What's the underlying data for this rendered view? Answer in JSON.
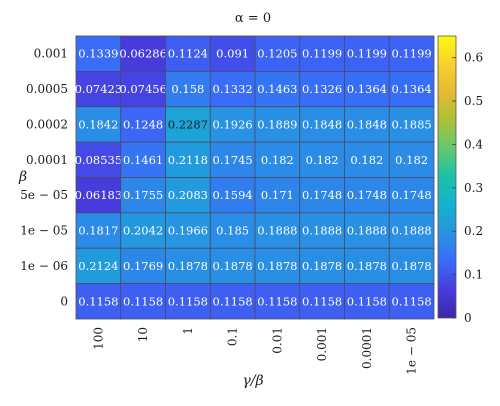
{
  "chart_data": {
    "type": "heatmap",
    "title": "α = 0",
    "xlabel": "γ/β",
    "ylabel": "β",
    "x_categories": [
      "100",
      "10",
      "1",
      "0.1",
      "0.01",
      "0.001",
      "0.0001",
      "1e − 05"
    ],
    "y_categories": [
      "0.001",
      "0.0005",
      "0.0002",
      "0.0001",
      "5e − 05",
      "1e − 05",
      "1e − 06",
      "0"
    ],
    "values": [
      [
        0.1339,
        0.06286,
        0.1124,
        0.091,
        0.1205,
        0.1199,
        0.1199,
        0.1199
      ],
      [
        0.07423,
        0.07456,
        0.158,
        0.1332,
        0.1463,
        0.1326,
        0.1364,
        0.1364
      ],
      [
        0.1842,
        0.1248,
        0.2287,
        0.1926,
        0.1889,
        0.1848,
        0.1848,
        0.1885
      ],
      [
        0.08535,
        0.1461,
        0.2118,
        0.1745,
        0.182,
        0.182,
        0.182,
        0.182
      ],
      [
        0.06183,
        0.1755,
        0.2083,
        0.1594,
        0.171,
        0.1748,
        0.1748,
        0.1748
      ],
      [
        0.1817,
        0.2042,
        0.1966,
        0.185,
        0.1888,
        0.1888,
        0.1888,
        0.1888
      ],
      [
        0.2124,
        0.1769,
        0.1878,
        0.1878,
        0.1878,
        0.1878,
        0.1878,
        0.1878
      ],
      [
        0.1158,
        0.1158,
        0.1158,
        0.1158,
        0.1158,
        0.1158,
        0.1158,
        0.1158
      ]
    ],
    "colormap": "parula",
    "colorbar": {
      "range": [
        0,
        0.65
      ],
      "ticks": [
        "0",
        "0.1",
        "0.2",
        "0.3",
        "0.4",
        "0.5",
        "0.6"
      ],
      "tick_values": [
        0,
        0.1,
        0.2,
        0.3,
        0.4,
        0.5,
        0.6
      ]
    }
  }
}
